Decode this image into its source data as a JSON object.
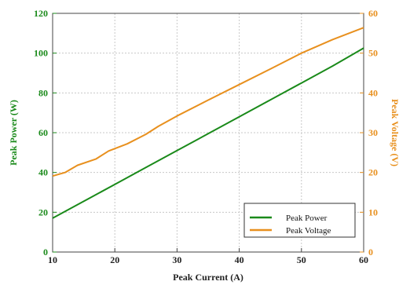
{
  "chart_data": {
    "type": "line",
    "title": "",
    "xlabel": "Peak Current (A)",
    "ylabel_left": "Peak Power (W)",
    "ylabel_right": "Peak Voltage (V)",
    "xlim": [
      10,
      60
    ],
    "ylim_left": [
      0,
      120
    ],
    "ylim_right": [
      0,
      60
    ],
    "x_ticks": [
      "10",
      "20",
      "30",
      "40",
      "50",
      "60"
    ],
    "y_ticks_left": [
      "0",
      "20",
      "40",
      "60",
      "80",
      "100",
      "120"
    ],
    "y_ticks_right": [
      "0",
      "10",
      "20",
      "30",
      "40",
      "50",
      "60"
    ],
    "grid": true,
    "legend_position": "bottom-right",
    "colors": {
      "power": "#1a8a1a",
      "voltage": "#e8901e"
    },
    "series": [
      {
        "name": "Peak Power",
        "axis": "left",
        "color": "#1a8a1a",
        "x": [
          10,
          15,
          20,
          25,
          30,
          35,
          40,
          45,
          50,
          55,
          60
        ],
        "y": [
          17,
          25.5,
          34,
          42.5,
          51,
          59.5,
          68,
          76.5,
          85,
          93.5,
          102.5
        ]
      },
      {
        "name": "Peak Voltage",
        "axis": "right",
        "color": "#e8901e",
        "x": [
          10,
          12,
          14,
          17,
          19,
          22,
          25,
          27,
          30,
          35,
          40,
          45,
          50,
          55,
          60
        ],
        "y": [
          19.1,
          20,
          21.8,
          23.4,
          25.4,
          27.2,
          29.6,
          31.6,
          34.2,
          38.2,
          42.1,
          46,
          50,
          53.4,
          56.4
        ]
      }
    ]
  }
}
